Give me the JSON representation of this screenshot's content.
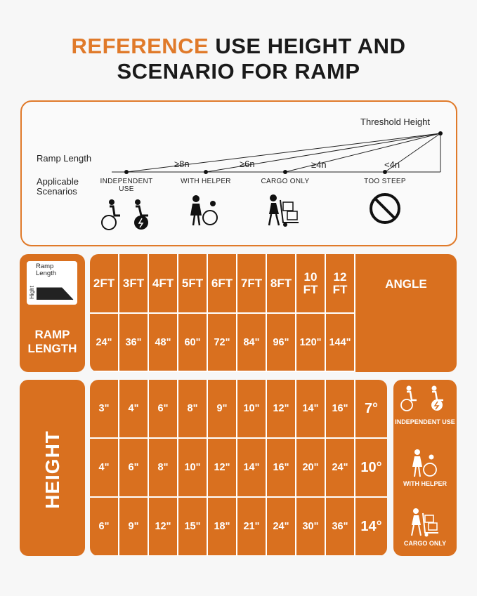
{
  "title": {
    "accent": "REFERENCE",
    "rest_line1": " USE HEIGHT AND",
    "line2": "SCENARIO FOR RAMP"
  },
  "diagram": {
    "threshold_height": "Threshold Height",
    "ramp_length": "Ramp Length",
    "applicable": "Applicable",
    "scenarios": "Scenarios",
    "ratios": [
      "≥8n",
      "≥6n",
      "≥4n",
      "<4n"
    ],
    "scenario_labels": [
      "INDEPENDENT USE",
      "WITH HELPER",
      "CARGO ONLY",
      "TOO STEEP"
    ]
  },
  "ramp_length_table": {
    "side_label_ramp": "Ramp",
    "side_label_length": "Length",
    "side_label_hight": "Hight",
    "label": "RAMP LENGTH",
    "feet": [
      "2FT",
      "3FT",
      "4FT",
      "5FT",
      "6FT",
      "7FT",
      "8FT",
      "10 FT",
      "12 FT"
    ],
    "inches": [
      "24\"",
      "36\"",
      "48\"",
      "60\"",
      "72\"",
      "84\"",
      "96\"",
      "120\"",
      "144\""
    ],
    "angle_header": "ANGLE"
  },
  "height_table": {
    "label": "HEIGHT",
    "rows": [
      {
        "values": [
          "3\"",
          "4\"",
          "6\"",
          "8\"",
          "9\"",
          "10\"",
          "12\"",
          "14\"",
          "16\""
        ],
        "angle": "7°"
      },
      {
        "values": [
          "4\"",
          "6\"",
          "8\"",
          "10\"",
          "12\"",
          "14\"",
          "16\"",
          "20\"",
          "24\""
        ],
        "angle": "10°"
      },
      {
        "values": [
          "6\"",
          "9\"",
          "12\"",
          "15\"",
          "18\"",
          "21\"",
          "24\"",
          "30\"",
          "36\""
        ],
        "angle": "14°"
      }
    ]
  },
  "scenario_panel": {
    "items": [
      "INDEPENDENT USE",
      "WITH HELPER",
      "CARGO ONLY"
    ]
  },
  "colors": {
    "accent": "#e07a2a",
    "table": "#d9701f",
    "divider": "#ffffff"
  }
}
